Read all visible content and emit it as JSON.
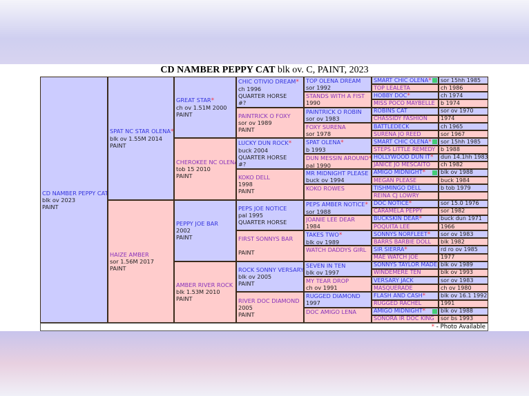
{
  "title": {
    "name": "CD NAMBER PEPPY CAT",
    "details": " blk ov. C, PAINT, 2023"
  },
  "colors": {
    "sire": "#ccccff",
    "dam": "#ffcccc",
    "star": "#ee3344",
    "photo_marker": "#44cc77"
  },
  "gen1": [
    {
      "name": "CD NAMBER PEPPY CAT",
      "lines": [
        "blk ov 2023",
        "PAINT"
      ],
      "star": false
    }
  ],
  "gen2": [
    {
      "name": "SPAT NC STAR OLENA",
      "lines": [
        "blk ov 1.55M 2014",
        "PAINT"
      ],
      "star": true
    },
    {
      "name": "HAIZE AMBER",
      "lines": [
        "sor 1.56M 2017",
        "PAINT"
      ],
      "star": false
    }
  ],
  "gen3": [
    {
      "name": "GREAT STAR",
      "lines": [
        "ch ov 1.51M 2000",
        "PAINT"
      ],
      "star": true
    },
    {
      "name": "CHEROKEE NC OLENA",
      "lines": [
        "tob 15 2010",
        "PAINT"
      ],
      "star": false
    },
    {
      "name": "PEPPY JOE BAR",
      "lines": [
        "2002",
        "PAINT"
      ],
      "star": false
    },
    {
      "name": "AMBER RIVER ROCK",
      "lines": [
        "blk 1.53M 2010",
        "PAINT"
      ],
      "star": false
    }
  ],
  "gen4": [
    {
      "name": "CHIC OTIVIO DREAM",
      "lines": [
        "ch 1996",
        "QUARTER HORSE",
        "#?"
      ],
      "star": true
    },
    {
      "name": "PAINTRICK O FOXY",
      "lines": [
        "sor ov 1989",
        "PAINT"
      ],
      "star": false
    },
    {
      "name": "LUCKY DUN ROCK",
      "lines": [
        "buck 2004",
        "QUARTER HORSE",
        "#?"
      ],
      "star": true
    },
    {
      "name": "KOKO DELL",
      "lines": [
        "1998",
        "PAINT"
      ],
      "star": false
    },
    {
      "name": "PEPS JOE NOTICE",
      "lines": [
        "pal 1995",
        "QUARTER HORSE"
      ],
      "star": false
    },
    {
      "name": "FIRST SONNYS BAR",
      "lines": [
        "",
        "PAINT"
      ],
      "star": false
    },
    {
      "name": "ROCK SONNY VERSARY",
      "lines": [
        "blk ov 2005",
        "PAINT"
      ],
      "star": false
    },
    {
      "name": "RIVER DOC DIAMOND",
      "lines": [
        "2005",
        "PAINT"
      ],
      "star": false
    }
  ],
  "gen5": [
    {
      "name": "TOP OLENA DREAM",
      "lines": [
        "sor 1992"
      ],
      "star": false
    },
    {
      "name": "STANDS WITH A FIST",
      "lines": [
        "1990"
      ],
      "star": false
    },
    {
      "name": "PAINTRICK O ROBIN",
      "lines": [
        "sor ov 1983"
      ],
      "star": false
    },
    {
      "name": "FOXY SURENA",
      "lines": [
        "sor 1978"
      ],
      "star": false
    },
    {
      "name": "SPAT OLENA",
      "lines": [
        "b 1993"
      ],
      "star": true
    },
    {
      "name": "DUN MESSIN AROUND",
      "lines": [
        "pal 1990"
      ],
      "star": true
    },
    {
      "name": "MR MIDNIGHT PLEASE",
      "lines": [
        "buck ov 1994"
      ],
      "star": false
    },
    {
      "name": "KOKO ROWES",
      "lines": [
        ""
      ],
      "star": false
    },
    {
      "name": "PEPS AMBER NOTICE",
      "lines": [
        "sor 1988"
      ],
      "star": true
    },
    {
      "name": "JOANIE LEE DEAR",
      "lines": [
        "1984"
      ],
      "star": false
    },
    {
      "name": "TAKES TWO",
      "lines": [
        "blk ov 1989"
      ],
      "star": true
    },
    {
      "name": "WATCH DADDYS GIRL",
      "lines": [
        ""
      ],
      "star": false
    },
    {
      "name": "SEVEN IN TEN",
      "lines": [
        "blk ov 1997"
      ],
      "star": false
    },
    {
      "name": "MY TEAR DROP",
      "lines": [
        "ch ov 1991"
      ],
      "star": false
    },
    {
      "name": "RUGGED DIAMOND",
      "lines": [
        "1997"
      ],
      "star": false
    },
    {
      "name": "DOC AMIGO LENA",
      "lines": [
        ""
      ],
      "star": false
    }
  ],
  "gen6": [
    {
      "name": "SMART CHIC OLENA",
      "detail": "sor 15hh 1985",
      "star": true,
      "photo": true
    },
    {
      "name": "TOP LEALETA",
      "detail": "ch 1986",
      "star": false,
      "photo": false
    },
    {
      "name": "HOBBY DOC",
      "detail": "ch 1974",
      "star": true,
      "photo": false
    },
    {
      "name": "MISS POCO MAYBELLE",
      "detail": "b 1974",
      "star": false,
      "photo": false
    },
    {
      "name": "ROBINS CAT",
      "detail": "sor ov 1970",
      "star": false,
      "photo": false
    },
    {
      "name": "CHASSIDY FASHION",
      "detail": "1974",
      "star": false,
      "photo": false
    },
    {
      "name": "BATTLEDECK",
      "detail": "ch 1965",
      "star": false,
      "photo": false
    },
    {
      "name": "SURENA JO REED",
      "detail": "sor 1967",
      "star": false,
      "photo": false
    },
    {
      "name": "SMART CHIC OLENA",
      "detail": "sor 15hh 1985",
      "star": true,
      "photo": true
    },
    {
      "name": "STEPS LITTLE REMEDY",
      "detail": "b 1988",
      "star": false,
      "photo": false
    },
    {
      "name": "HOLLYWOOD DUN IT",
      "detail": "dun 14.1hh 1983",
      "star": true,
      "photo": false
    },
    {
      "name": "JANICE JO MESCAITO",
      "detail": "ch 1982",
      "star": false,
      "photo": false
    },
    {
      "name": "AMIGO MIDNIGHT",
      "detail": "blk ov 1988",
      "star": true,
      "photo": true
    },
    {
      "name": "MEGAN PLEASE",
      "detail": "buck 1984",
      "star": false,
      "photo": false
    },
    {
      "name": "TISHMINGO DELL",
      "detail": "b tob 1979",
      "star": false,
      "photo": false
    },
    {
      "name": "REINA CJ LOWRY",
      "detail": "",
      "star": false,
      "photo": false
    },
    {
      "name": "DOC NOTICE",
      "detail": "sor 15.0 1976",
      "star": true,
      "photo": false
    },
    {
      "name": "CARAMELA PEPPY",
      "detail": "sor 1982",
      "star": false,
      "photo": false
    },
    {
      "name": "BUCKSKIN DEAR",
      "detail": "buck dun 1971",
      "star": true,
      "photo": false
    },
    {
      "name": "POQUITA LEE",
      "detail": "1966",
      "star": false,
      "photo": false
    },
    {
      "name": "SONNYS NORFLEET",
      "detail": "sor ov 1983",
      "star": true,
      "photo": false
    },
    {
      "name": "BARRS BARBIE DOLL",
      "detail": "blk 1982",
      "star": false,
      "photo": false
    },
    {
      "name": "SIR SIERRA",
      "detail": "rd ro ov 1985",
      "star": true,
      "photo": false
    },
    {
      "name": "MAE WATCH JOE",
      "detail": "1977",
      "star": false,
      "photo": false
    },
    {
      "name": "SONNYS TAYLOR MADE",
      "detail": "blk ov 1989",
      "star": false,
      "photo": false
    },
    {
      "name": "WINDEMERE TEN",
      "detail": "blk ov 1993",
      "star": false,
      "photo": false
    },
    {
      "name": "VERSARY JACK",
      "detail": "sor ov 1983",
      "star": false,
      "photo": false
    },
    {
      "name": "MASQUERADE",
      "detail": "ch ov 1980",
      "star": false,
      "photo": false
    },
    {
      "name": "FLASH AND CASH",
      "detail": "blk ov 16.1 1992",
      "star": true,
      "photo": false
    },
    {
      "name": "RUGGED RACHEL",
      "detail": "1991",
      "star": false,
      "photo": false
    },
    {
      "name": "AMIGO MIDNIGHT",
      "detail": "blk ov 1988",
      "star": true,
      "photo": true
    },
    {
      "name": "SONORA IR DOC KING",
      "detail": "sor bs 1993",
      "star": false,
      "photo": false
    }
  ],
  "footer": {
    "star": "*",
    "text": " - Photo Available"
  }
}
